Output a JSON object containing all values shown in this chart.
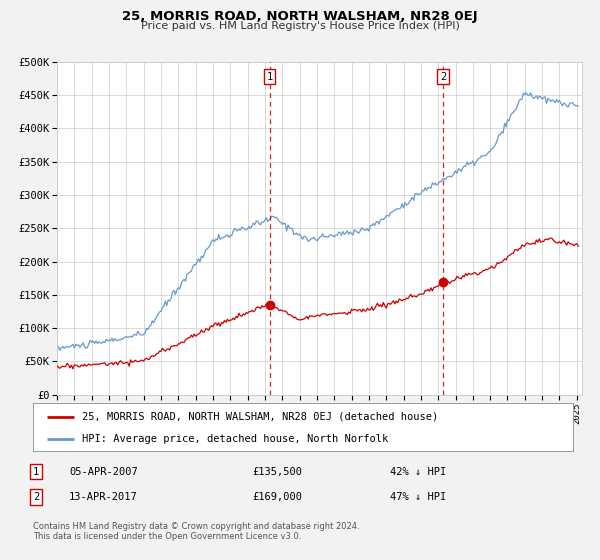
{
  "title": "25, MORRIS ROAD, NORTH WALSHAM, NR28 0EJ",
  "subtitle": "Price paid vs. HM Land Registry's House Price Index (HPI)",
  "legend_entry1": "25, MORRIS ROAD, NORTH WALSHAM, NR28 0EJ (detached house)",
  "legend_entry2": "HPI: Average price, detached house, North Norfolk",
  "annotation1_date": "05-APR-2007",
  "annotation1_price": "£135,500",
  "annotation1_hpi": "42% ↓ HPI",
  "annotation2_date": "13-APR-2017",
  "annotation2_price": "£169,000",
  "annotation2_hpi": "47% ↓ HPI",
  "copyright": "Contains HM Land Registry data © Crown copyright and database right 2024.\nThis data is licensed under the Open Government Licence v3.0.",
  "red_color": "#cc0000",
  "blue_color": "#6699cc",
  "vline_color": "#cc0000",
  "marker1_date_num": 2007.27,
  "marker1_value": 135500,
  "marker2_date_num": 2017.28,
  "marker2_value": 169000,
  "ylim": [
    0,
    500000
  ],
  "xlim_start": 1995.0,
  "xlim_end": 2025.3,
  "background_color": "#f2f2f2",
  "plot_bg_color": "#ffffff",
  "title_fontsize": 9.5,
  "subtitle_fontsize": 8.0,
  "tick_fontsize": 6.5,
  "ytick_fontsize": 7.5,
  "legend_fontsize": 7.5,
  "ann_fontsize": 7.5,
  "copyright_fontsize": 6.0
}
